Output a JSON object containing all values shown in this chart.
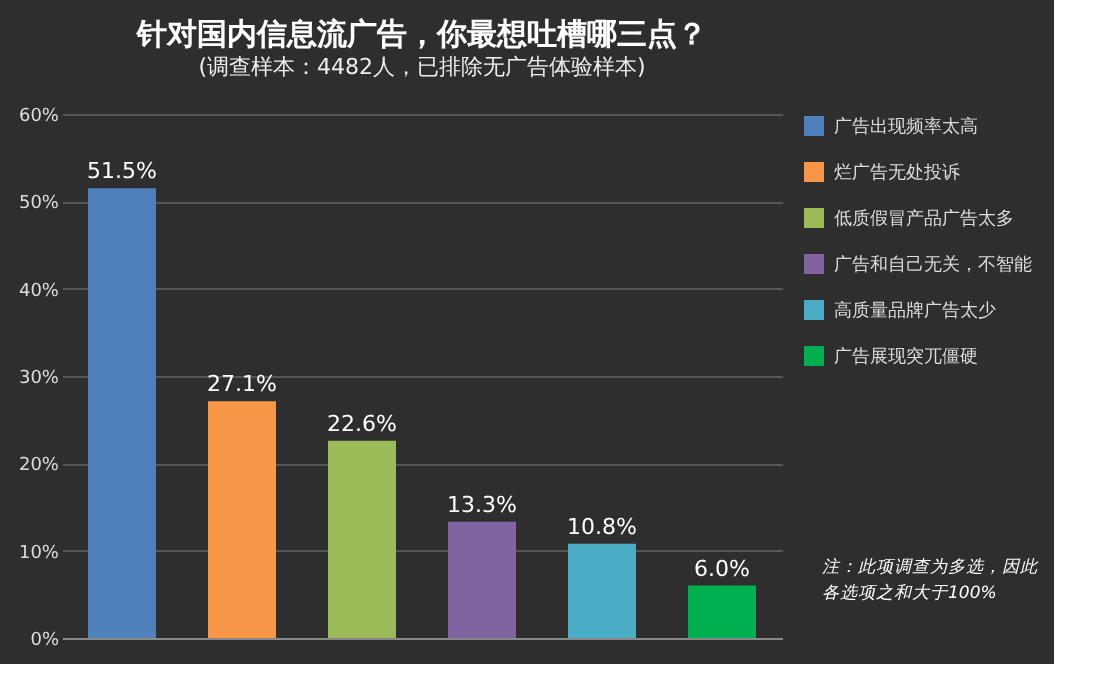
{
  "chart_data": {
    "type": "bar",
    "title": "针对国内信息流广告，你最想吐槽哪三点？",
    "subtitle": "(调查样本：4482人，已排除无广告体验样本)",
    "categories": [
      null,
      null,
      null,
      null,
      null,
      null
    ],
    "series": [
      {
        "name": "广告出现频率太高",
        "color": "#4f81bd",
        "values": [
          51.5,
          null,
          null,
          null,
          null,
          null
        ],
        "value_labels": [
          "51.5%",
          null,
          null,
          null,
          null,
          null
        ]
      },
      {
        "name": "烂广告无处投诉",
        "color": "#f79646",
        "values": [
          null,
          27.1,
          null,
          null,
          null,
          null
        ],
        "value_labels": [
          null,
          "27.1%",
          null,
          null,
          null,
          null
        ]
      },
      {
        "name": "低质假冒产品广告太多",
        "color": "#9bbb59",
        "values": [
          null,
          null,
          22.6,
          null,
          null,
          null
        ],
        "value_labels": [
          null,
          null,
          "22.6%",
          null,
          null,
          null
        ]
      },
      {
        "name": "广告和自己无关，不智能",
        "color": "#8064a2",
        "values": [
          null,
          null,
          null,
          13.3,
          null,
          null
        ],
        "value_labels": [
          null,
          null,
          null,
          "13.3%",
          null,
          null
        ]
      },
      {
        "name": "高质量品牌广告太少",
        "color": "#4bacc6",
        "values": [
          null,
          null,
          null,
          null,
          10.8,
          null
        ],
        "value_labels": [
          null,
          null,
          null,
          null,
          "10.8%",
          null
        ]
      },
      {
        "name": "广告展现突兀僵硬",
        "color": "#00b050",
        "values": [
          null,
          null,
          null,
          null,
          null,
          6.0
        ],
        "value_labels": [
          null,
          null,
          null,
          null,
          null,
          "6.0%"
        ]
      }
    ],
    "ylim": [
      0,
      60
    ],
    "yticks": [
      {
        "value": 0,
        "label": "0%"
      },
      {
        "value": 10,
        "label": "10%"
      },
      {
        "value": 20,
        "label": "20%"
      },
      {
        "value": 30,
        "label": "30%"
      },
      {
        "value": 40,
        "label": "40%"
      },
      {
        "value": 50,
        "label": "50%"
      },
      {
        "value": 60,
        "label": "60%"
      }
    ],
    "grid": "y",
    "legend": "right",
    "tick_labels": "y",
    "annotations": [
      "注：此项调查为多选，因此各选项之和大于100%"
    ]
  }
}
